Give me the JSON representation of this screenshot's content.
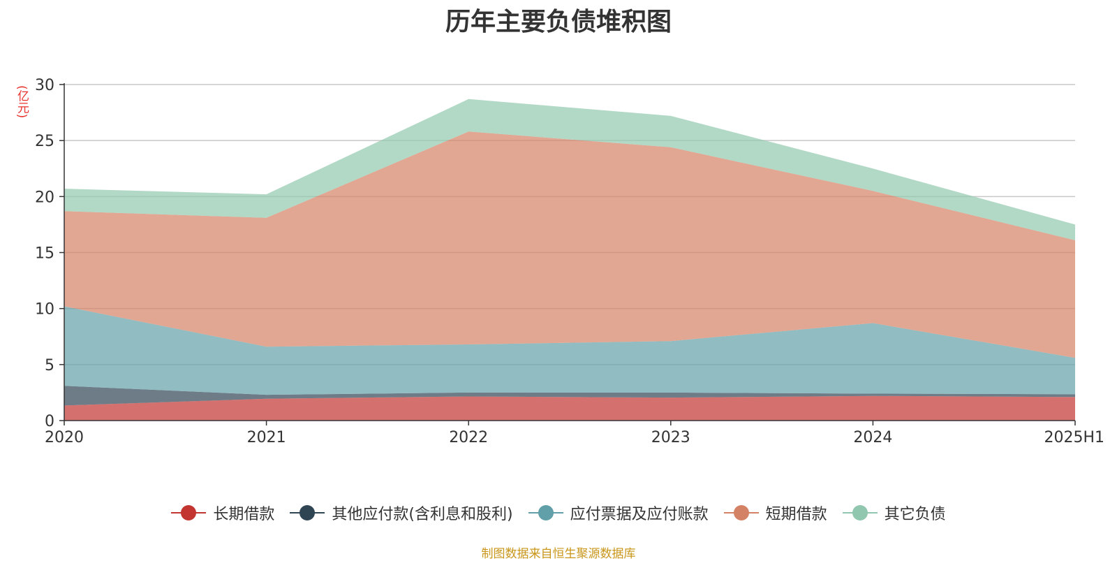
{
  "chart_data": {
    "type": "area",
    "stacked": true,
    "title": "历年主要负债堆积图",
    "ylabel": "(亿元)",
    "categories": [
      "2020",
      "2021",
      "2022",
      "2023",
      "2024",
      "2025H1"
    ],
    "ylim": [
      0,
      30
    ],
    "yticks": [
      0,
      5,
      10,
      15,
      20,
      25,
      30
    ],
    "grid": true,
    "legend_position": "bottom",
    "series": [
      {
        "name": "长期借款",
        "color": "#c23531",
        "values": [
          1.35,
          1.95,
          2.15,
          2.05,
          2.2,
          2.1
        ]
      },
      {
        "name": "其他应付款(含利息和股利)",
        "color": "#2f4554",
        "values": [
          1.75,
          0.35,
          0.35,
          0.45,
          0.2,
          0.25
        ]
      },
      {
        "name": "应付票据及应付账款",
        "color": "#61a0a8",
        "values": [
          7.1,
          4.3,
          4.3,
          4.6,
          6.3,
          3.25
        ]
      },
      {
        "name": "短期借款",
        "color": "#d48265",
        "values": [
          8.5,
          11.5,
          19.0,
          17.3,
          11.8,
          10.5
        ]
      },
      {
        "name": "其它负债",
        "color": "#91c7ae",
        "values": [
          2.0,
          2.1,
          2.9,
          2.8,
          2.0,
          1.4
        ]
      }
    ],
    "source": "制图数据来自恒生聚源数据库"
  }
}
